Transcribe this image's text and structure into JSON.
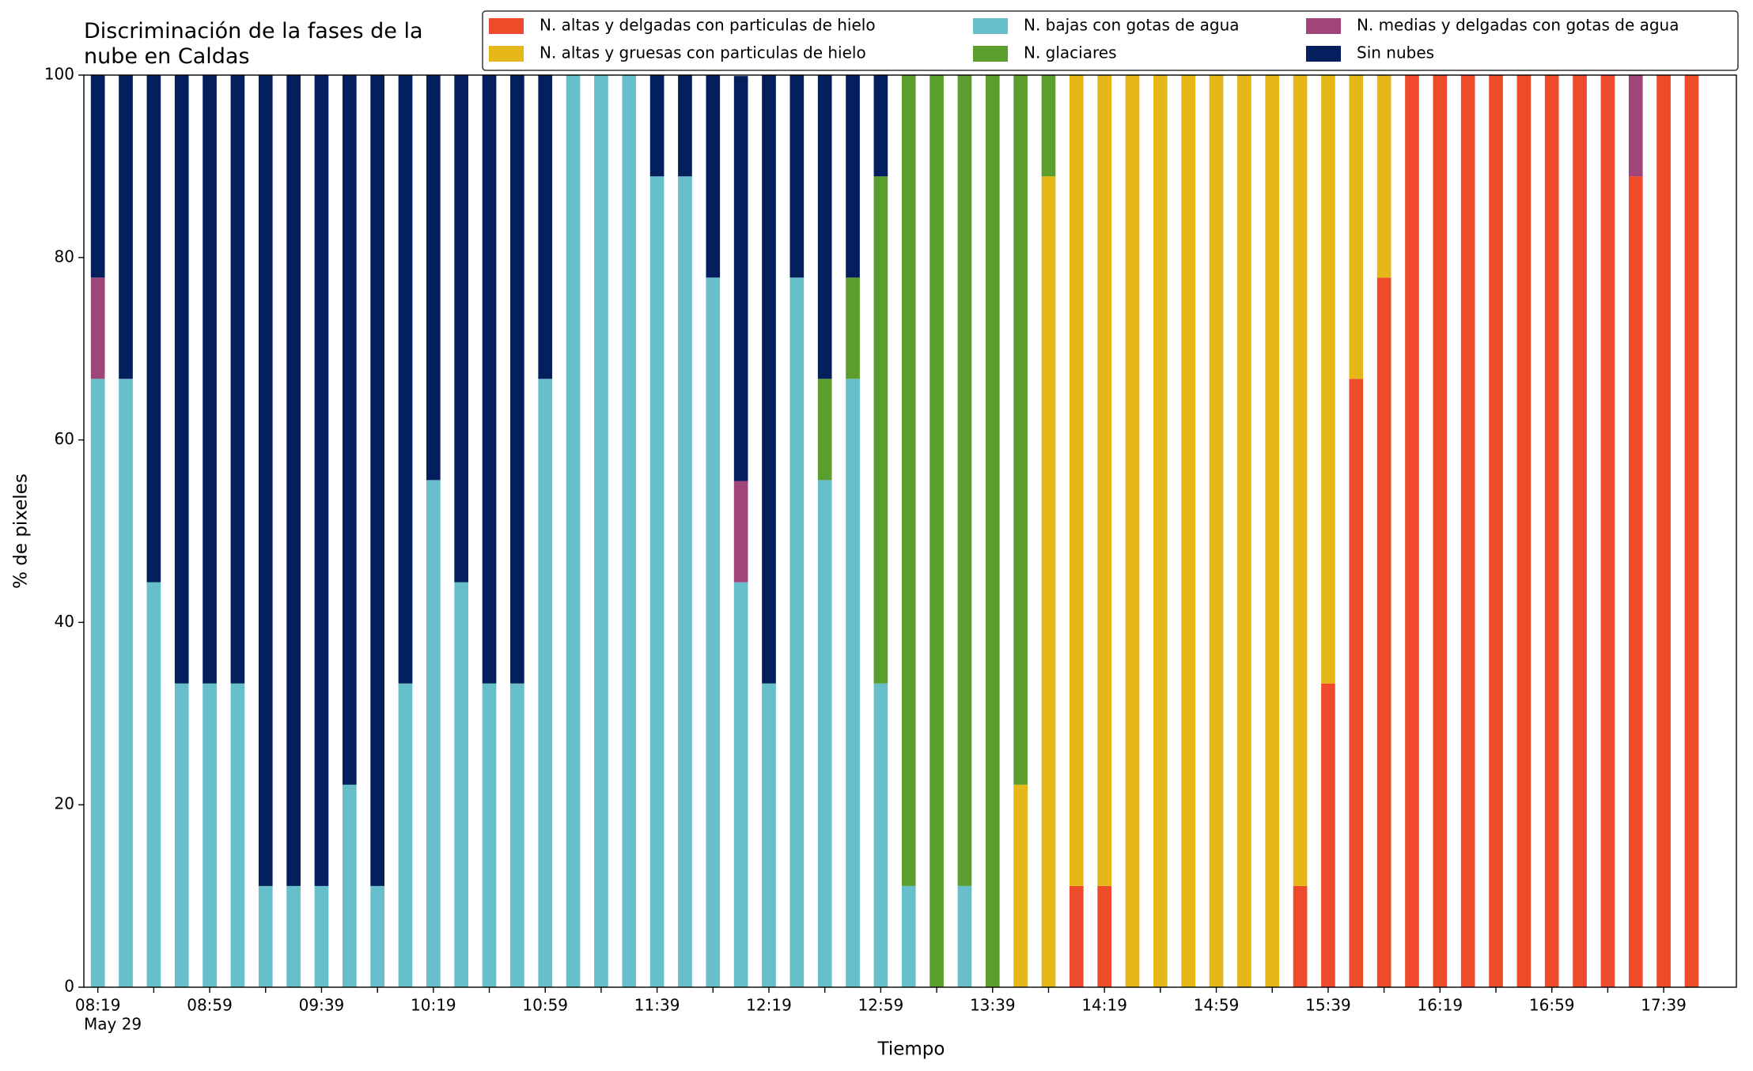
{
  "chart_data": {
    "type": "stacked_bar",
    "title": "Discriminación de la fases de la\nnube en Caldas",
    "xlabel": "Tiempo",
    "ylabel": "% de pixeles",
    "date_label": "May 29",
    "categories": [
      "08:19",
      null,
      null,
      null,
      "08:59",
      null,
      null,
      null,
      "09:39",
      null,
      null,
      null,
      "10:19",
      null,
      null,
      null,
      "10:59",
      null,
      null,
      null,
      "11:39",
      null,
      null,
      null,
      "12:19",
      null,
      null,
      null,
      "12:59",
      null,
      null,
      null,
      "13:39",
      null,
      null,
      null,
      "14:19",
      null,
      null,
      null,
      "14:59",
      null,
      null,
      null,
      "15:39",
      null,
      null,
      null,
      "16:19",
      null,
      null,
      null,
      "16:59",
      null,
      null,
      null,
      "17:39",
      null
    ],
    "xlim": [
      -0.5,
      58.6
    ],
    "ylim": [
      0,
      100
    ],
    "yticks": [
      0,
      20,
      40,
      60,
      80,
      100
    ],
    "series": [
      {
        "name": "N. altas y delgadas con particulas de hielo",
        "color": "#ef4b2a",
        "values": [
          0,
          0,
          0,
          0,
          0,
          0,
          0,
          0,
          0,
          0,
          0,
          0,
          0,
          0,
          0,
          0,
          0,
          0,
          0,
          0,
          0,
          0,
          0,
          0,
          0,
          0,
          0,
          0,
          0,
          0,
          0,
          0,
          0,
          0,
          0,
          11.1,
          11.1,
          0,
          0,
          0,
          0,
          0,
          0,
          11.1,
          33.3,
          66.7,
          77.8,
          100,
          100,
          100,
          100,
          100,
          100,
          100,
          100,
          88.9,
          100,
          100
        ]
      },
      {
        "name": "N. altas y gruesas con particulas de hielo",
        "color": "#e5b718",
        "values": [
          0,
          0,
          0,
          0,
          0,
          0,
          0,
          0,
          0,
          0,
          0,
          0,
          0,
          0,
          0,
          0,
          0,
          0,
          0,
          0,
          0,
          0,
          0,
          0,
          0,
          0,
          0,
          0,
          0,
          0,
          0,
          0,
          0,
          22.2,
          88.9,
          88.9,
          88.9,
          100,
          100,
          100,
          100,
          100,
          100,
          88.9,
          66.7,
          33.3,
          22.2,
          0,
          0,
          0,
          0,
          0,
          0,
          0,
          0,
          0,
          0,
          0
        ]
      },
      {
        "name": "N. bajas con gotas de agua",
        "color": "#67bfcb",
        "values": [
          66.7,
          66.7,
          44.4,
          33.3,
          33.3,
          33.3,
          11.1,
          11.1,
          11.1,
          22.2,
          11.1,
          33.3,
          55.6,
          44.4,
          33.3,
          33.3,
          66.7,
          100,
          100,
          100,
          88.9,
          88.9,
          77.8,
          44.4,
          33.3,
          77.8,
          55.6,
          66.7,
          33.3,
          11.1,
          0,
          11.1,
          0,
          0,
          0,
          0,
          0,
          0,
          0,
          0,
          0,
          0,
          0,
          0,
          0,
          0,
          0,
          0,
          0,
          0,
          0,
          0,
          0,
          0,
          0,
          0,
          0,
          0
        ]
      },
      {
        "name": "N. glaciares",
        "color": "#5c9e2d",
        "values": [
          0,
          0,
          0,
          0,
          0,
          0,
          0,
          0,
          0,
          0,
          0,
          0,
          0,
          0,
          0,
          0,
          0,
          0,
          0,
          0,
          0,
          0,
          0,
          0,
          0,
          0,
          11.1,
          11.1,
          55.6,
          88.9,
          100,
          88.9,
          100,
          77.8,
          11.1,
          0,
          0,
          0,
          0,
          0,
          0,
          0,
          0,
          0,
          0,
          0,
          0,
          0,
          0,
          0,
          0,
          0,
          0,
          0,
          0,
          0,
          0,
          0
        ]
      },
      {
        "name": "N. medias y delgadas con gotas de agua",
        "color": "#a04579",
        "values": [
          11.1,
          0,
          0,
          0,
          0,
          0,
          0,
          0,
          0,
          0,
          0,
          0,
          0,
          0,
          0,
          0,
          0,
          0,
          0,
          0,
          0,
          0,
          0,
          11.1,
          0,
          0,
          0,
          0,
          0,
          0,
          0,
          0,
          0,
          0,
          0,
          0,
          0,
          0,
          0,
          0,
          0,
          0,
          0,
          0,
          0,
          0,
          0,
          0,
          0,
          0,
          0,
          0,
          0,
          0,
          0,
          11.1,
          0,
          0
        ]
      },
      {
        "name": "Sin nubes",
        "color": "#031f5e",
        "values": [
          22.2,
          33.3,
          55.6,
          66.7,
          66.7,
          66.7,
          88.9,
          88.9,
          88.9,
          77.8,
          88.9,
          66.7,
          44.4,
          55.6,
          66.7,
          66.7,
          33.3,
          0,
          0,
          0,
          11.1,
          11.1,
          22.2,
          44.4,
          66.7,
          22.2,
          33.3,
          22.2,
          11.1,
          0,
          0,
          0,
          0,
          0,
          0,
          0,
          0,
          0,
          0,
          0,
          0,
          0,
          0,
          0,
          0,
          0,
          0,
          0,
          0,
          0,
          0,
          0,
          0,
          0,
          0,
          0,
          0,
          0
        ]
      }
    ]
  }
}
